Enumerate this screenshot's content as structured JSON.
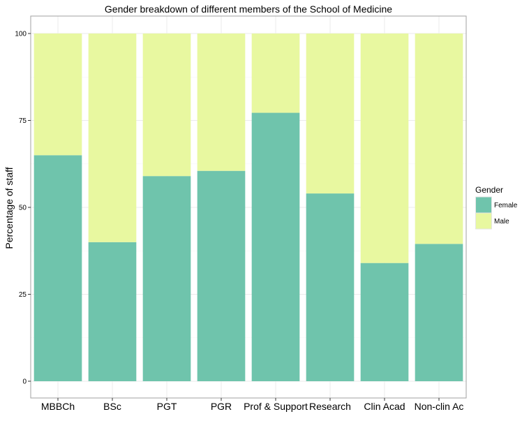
{
  "chart_data": {
    "type": "bar",
    "stacked": true,
    "title": "Gender breakdown of different members of the School of Medicine",
    "xlabel": "",
    "ylabel": "Percentage of staff",
    "ylim": [
      0,
      100
    ],
    "yticks": [
      0,
      25,
      50,
      75,
      100
    ],
    "categories": [
      "MBBCh",
      "BSc",
      "PGT",
      "PGR",
      "Prof & Support",
      "Research",
      "Clin Acad",
      "Non-clin Ac"
    ],
    "series": [
      {
        "name": "Female",
        "color": "#6fc4ac",
        "values": [
          65,
          40,
          59,
          60.5,
          77.2,
          54,
          34,
          39.5
        ]
      },
      {
        "name": "Male",
        "color": "#e8f8a0",
        "values": [
          35,
          60,
          41,
          39.5,
          22.8,
          46,
          66,
          60.5
        ]
      }
    ],
    "legend": {
      "title": "Gender",
      "placement": "right"
    },
    "grid": true
  }
}
